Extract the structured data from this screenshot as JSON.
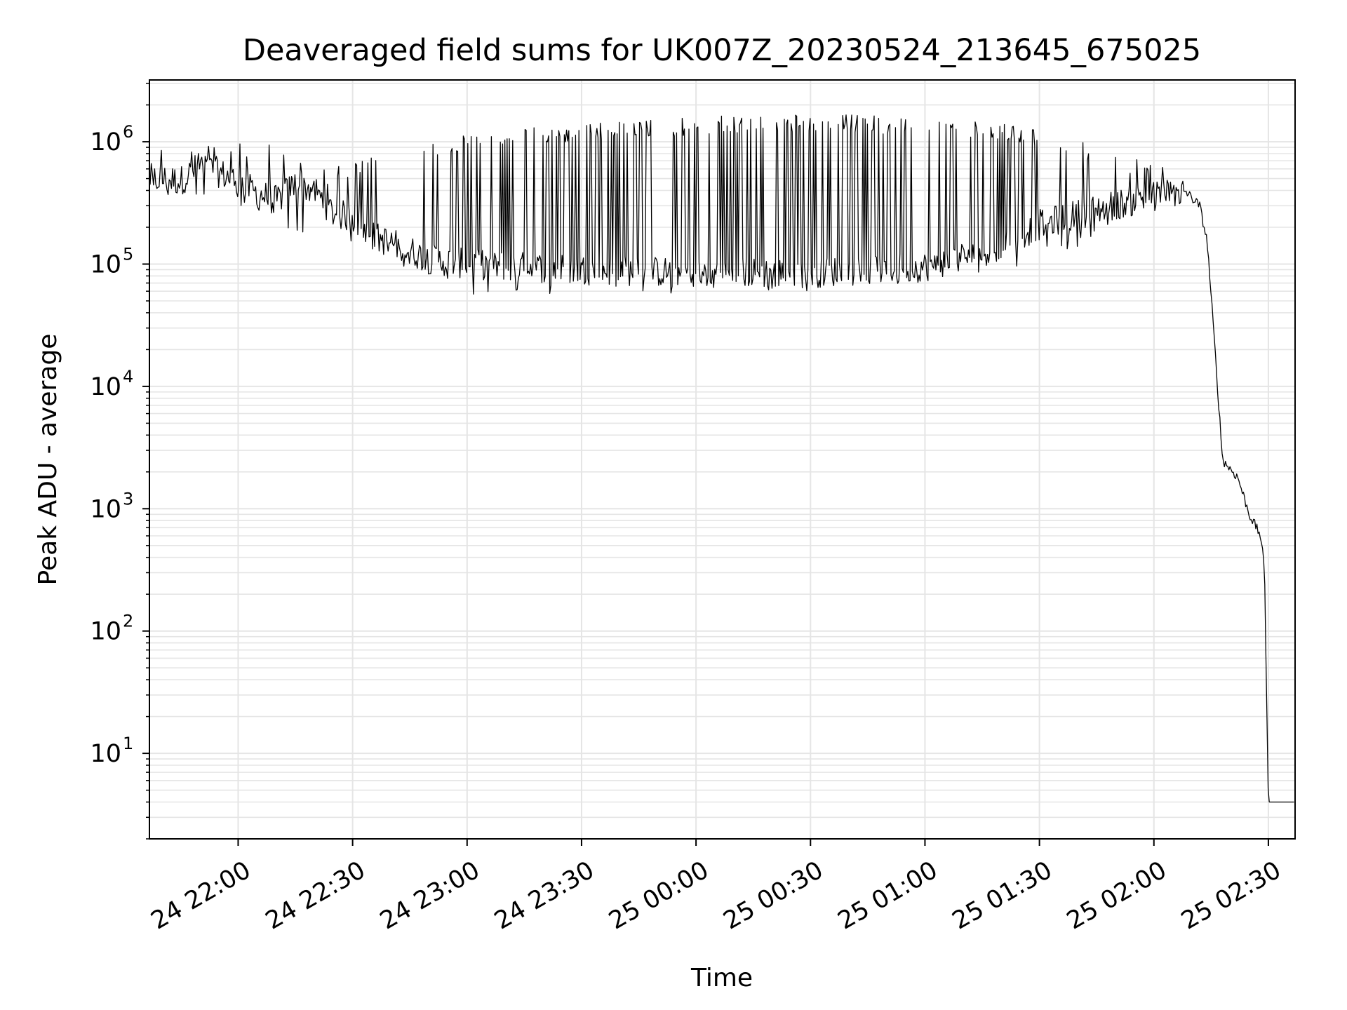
{
  "chart_data": {
    "type": "line",
    "title": "Deaveraged field sums for UK007Z_20230524_213645_675025",
    "xlabel": "Time",
    "ylabel": "Peak ADU - average",
    "yscale": "log",
    "xlim": [
      "2023-05-24 21:36:45",
      "2023-05-25 02:37:00"
    ],
    "ylim": [
      2,
      3200000
    ],
    "grid": true,
    "legend": "none",
    "x_ticks": [
      {
        "value": "2023-05-24 22:00",
        "label": "24 22:00"
      },
      {
        "value": "2023-05-24 22:30",
        "label": "24 22:30"
      },
      {
        "value": "2023-05-24 23:00",
        "label": "24 23:00"
      },
      {
        "value": "2023-05-24 23:30",
        "label": "24 23:30"
      },
      {
        "value": "2023-05-25 00:00",
        "label": "25 00:00"
      },
      {
        "value": "2023-05-25 00:30",
        "label": "25 00:30"
      },
      {
        "value": "2023-05-25 01:00",
        "label": "25 01:00"
      },
      {
        "value": "2023-05-25 01:30",
        "label": "25 01:30"
      },
      {
        "value": "2023-05-25 02:00",
        "label": "25 02:00"
      },
      {
        "value": "2023-05-25 02:30",
        "label": "25 02:30"
      }
    ],
    "y_ticks": [
      {
        "value": 10,
        "base": "10",
        "exp": "1"
      },
      {
        "value": 100,
        "base": "10",
        "exp": "2"
      },
      {
        "value": 1000,
        "base": "10",
        "exp": "3"
      },
      {
        "value": 10000,
        "base": "10",
        "exp": "4"
      },
      {
        "value": 100000,
        "base": "10",
        "exp": "5"
      },
      {
        "value": 1000000,
        "base": "10",
        "exp": "6"
      }
    ],
    "line_color": "#000000",
    "grid_color": "#e5e5e5",
    "series": [
      {
        "baseline": [
          [
            "2023-05-24 21:36:45",
            500000
          ],
          [
            "2023-05-24 21:45",
            480000
          ],
          [
            "2023-05-24 21:50",
            640000
          ],
          [
            "2023-05-24 21:55",
            560000
          ],
          [
            "2023-05-24 22:00",
            470000
          ],
          [
            "2023-05-24 22:05",
            380000
          ],
          [
            "2023-05-24 22:10",
            330000
          ],
          [
            "2023-05-24 22:15",
            450000
          ],
          [
            "2023-05-24 22:20",
            400000
          ],
          [
            "2023-05-24 22:25",
            260000
          ],
          [
            "2023-05-24 22:30",
            240000
          ],
          [
            "2023-05-24 22:35",
            170000
          ],
          [
            "2023-05-24 22:40",
            150000
          ],
          [
            "2023-05-24 22:50",
            110000
          ],
          [
            "2023-05-24 23:00",
            100000
          ],
          [
            "2023-05-24 23:30",
            90000
          ],
          [
            "2023-05-25 00:00",
            85000
          ],
          [
            "2023-05-25 00:30",
            85000
          ],
          [
            "2023-05-25 01:00",
            95000
          ],
          [
            "2023-05-25 01:20",
            140000
          ],
          [
            "2023-05-25 01:30",
            210000
          ],
          [
            "2023-05-25 01:45",
            280000
          ],
          [
            "2023-05-25 02:00",
            360000
          ],
          [
            "2023-05-25 02:08",
            400000
          ],
          [
            "2023-05-25 02:12",
            300000
          ],
          [
            "2023-05-25 02:14",
            150000
          ],
          [
            "2023-05-25 02:16",
            20000
          ],
          [
            "2023-05-25 02:18",
            2500
          ],
          [
            "2023-05-25 02:22",
            1800
          ],
          [
            "2023-05-25 02:25",
            900
          ],
          [
            "2023-05-25 02:28",
            600
          ],
          [
            "2023-05-25 02:29",
            300
          ],
          [
            "2023-05-25 02:30",
            4
          ],
          [
            "2023-05-25 02:37",
            4
          ]
        ],
        "upper_envelope": [
          [
            "2023-05-24 21:36:45",
            1000000
          ],
          [
            "2023-05-24 22:00",
            1000000
          ],
          [
            "2023-05-24 22:10",
            1100000
          ],
          [
            "2023-05-24 22:20",
            600000
          ],
          [
            "2023-05-24 22:30",
            700000
          ],
          [
            "2023-05-24 22:40",
            800000
          ],
          [
            "2023-05-24 23:00",
            1200000
          ],
          [
            "2023-05-24 23:30",
            1400000
          ],
          [
            "2023-05-25 00:00",
            1600000
          ],
          [
            "2023-05-25 00:30",
            1700000
          ],
          [
            "2023-05-25 01:00",
            1600000
          ],
          [
            "2023-05-25 01:30",
            1300000
          ],
          [
            "2023-05-25 01:45",
            900000
          ],
          [
            "2023-05-25 02:00",
            700000
          ],
          [
            "2023-05-25 02:08",
            500000
          ]
        ],
        "lower_envelope": [
          [
            "2023-05-24 21:36:45",
            350000
          ],
          [
            "2023-05-24 22:00",
            300000
          ],
          [
            "2023-05-24 22:10",
            200000
          ],
          [
            "2023-05-24 22:30",
            150000
          ],
          [
            "2023-05-24 23:00",
            55000
          ],
          [
            "2023-05-24 23:30",
            55000
          ],
          [
            "2023-05-25 00:00",
            55000
          ],
          [
            "2023-05-25 00:30",
            60000
          ],
          [
            "2023-05-25 01:00",
            70000
          ],
          [
            "2023-05-25 01:30",
            100000
          ],
          [
            "2023-05-25 02:00",
            250000
          ],
          [
            "2023-05-25 02:08",
            300000
          ]
        ]
      }
    ]
  }
}
